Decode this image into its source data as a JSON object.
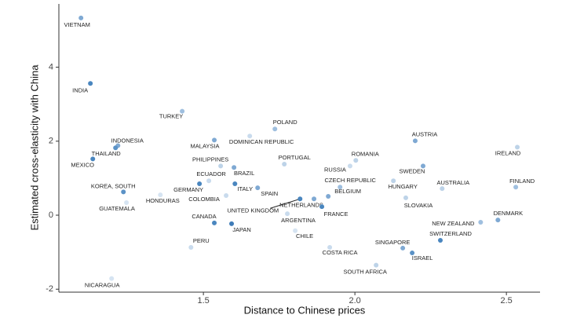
{
  "chart_data": {
    "type": "scatter",
    "xlabel": "Distance to Chinese prices",
    "ylabel": "Estimated cross-elasticity with China",
    "xlim": [
      1.023,
      2.611
    ],
    "ylim": [
      -2.08,
      5.71
    ],
    "xticks": [
      1.5,
      {
        "value": 2.0,
        "label": "2.0"
      },
      2.5
    ],
    "yticks": [
      -2,
      0,
      2,
      4
    ],
    "points": [
      {
        "label": "VIETNAM",
        "x": 1.096,
        "y": 5.33,
        "color": "#7fa9d3"
      },
      {
        "label": "INDIA",
        "x": 1.127,
        "y": 3.56,
        "color": "#4a86bf"
      },
      {
        "label": "TURKEY",
        "x": 1.43,
        "y": 2.81,
        "color": "#9fbfdf"
      },
      {
        "label": "INDONESIA",
        "x": 1.218,
        "y": 1.88,
        "color": "#7fa9d3"
      },
      {
        "label": "THAILAND",
        "x": 1.21,
        "y": 1.82,
        "color": "#5b92c6"
      },
      {
        "label": "MEXICO",
        "x": 1.135,
        "y": 1.52,
        "color": "#4a86bf"
      },
      {
        "label": "MALAYSIA",
        "x": 1.536,
        "y": 2.03,
        "color": "#7fa9d3"
      },
      {
        "label": "DOMINICAN REPUBLIC",
        "x": 1.653,
        "y": 2.14,
        "color": "#c9dbed"
      },
      {
        "label": "POLAND",
        "x": 1.736,
        "y": 2.33,
        "color": "#9fbfdf"
      },
      {
        "label": "PHILIPPINES",
        "x": 1.557,
        "y": 1.33,
        "color": "#bdd3e8"
      },
      {
        "label": "BRAZIL",
        "x": 1.601,
        "y": 1.29,
        "color": "#7fa9d3"
      },
      {
        "label": "ECUADOR",
        "x": 1.518,
        "y": 0.93,
        "color": "#c9dbed"
      },
      {
        "label": "GERMANY",
        "x": 1.487,
        "y": 0.85,
        "color": "#4a86bf"
      },
      {
        "label": "ITALY",
        "x": 1.604,
        "y": 0.85,
        "color": "#4a86bf"
      },
      {
        "label": "COLOMBIA",
        "x": 1.575,
        "y": 0.53,
        "color": "#c9dbed"
      },
      {
        "label": "PORTUGAL",
        "x": 1.767,
        "y": 1.38,
        "color": "#bdd3e8"
      },
      {
        "label": "SPAIN",
        "x": 1.679,
        "y": 0.74,
        "color": "#7fa9d3"
      },
      {
        "label": "KOREA, SOUTH",
        "x": 1.236,
        "y": 0.63,
        "color": "#5b92c6"
      },
      {
        "label": "GUATEMALA",
        "x": 1.246,
        "y": 0.34,
        "color": "#d6e4f2"
      },
      {
        "label": "HONDURAS",
        "x": 1.358,
        "y": 0.55,
        "color": "#d6e4f2"
      },
      {
        "label": "CANADA",
        "x": 1.536,
        "y": -0.21,
        "color": "#4a86bf"
      },
      {
        "label": "JAPAN",
        "x": 1.593,
        "y": -0.23,
        "color": "#3f7cb8"
      },
      {
        "label": "PERU",
        "x": 1.459,
        "y": -0.87,
        "color": "#c9dbed"
      },
      {
        "label": "NICARAGUA",
        "x": 1.197,
        "y": -1.71,
        "color": "#d6e4f2"
      },
      {
        "label": "UNITED KINGDOM",
        "x": 1.819,
        "y": 0.44,
        "color": "#4a86bf"
      },
      {
        "label": "NETHERLANDS",
        "x": 1.865,
        "y": 0.44,
        "color": "#7fa9d3"
      },
      {
        "label": "FRANCE",
        "x": 1.891,
        "y": 0.23,
        "color": "#4a86bf"
      },
      {
        "label": "ARGENTINA",
        "x": 1.777,
        "y": 0.04,
        "color": "#c9dbed"
      },
      {
        "label": "CHILE",
        "x": 1.803,
        "y": -0.42,
        "color": "#d6e4f2"
      },
      {
        "label": "BELGIUM",
        "x": 1.912,
        "y": 0.51,
        "color": "#7fa9d3"
      },
      {
        "label": "CZECH REPUBLIC",
        "x": 1.951,
        "y": 0.76,
        "color": "#9fbfdf"
      },
      {
        "label": "RUSSIA",
        "x": 1.984,
        "y": 1.33,
        "color": "#c9dbed"
      },
      {
        "label": "ROMANIA",
        "x": 2.003,
        "y": 1.48,
        "color": "#bdd3e8"
      },
      {
        "label": "COSTA RICA",
        "x": 1.917,
        "y": -0.87,
        "color": "#c9dbed"
      },
      {
        "label": "SOUTH AFRICA",
        "x": 2.07,
        "y": -1.35,
        "color": "#bdd3e8"
      },
      {
        "label": "AUSTRIA",
        "x": 2.199,
        "y": 2.01,
        "color": "#7fa9d3"
      },
      {
        "label": "SWEDEN",
        "x": 2.225,
        "y": 1.33,
        "color": "#7fa9d3"
      },
      {
        "label": "HUNGARY",
        "x": 2.127,
        "y": 0.93,
        "color": "#bdd3e8"
      },
      {
        "label": "SLOVAKIA",
        "x": 2.168,
        "y": 0.47,
        "color": "#bdd3e8"
      },
      {
        "label": "AUSTRALIA",
        "x": 2.288,
        "y": 0.72,
        "color": "#bdd3e8"
      },
      {
        "label": "IRELAND",
        "x": 2.536,
        "y": 1.84,
        "color": "#bdd3e8"
      },
      {
        "label": "FINLAND",
        "x": 2.531,
        "y": 0.76,
        "color": "#9fbfdf"
      },
      {
        "label": "DENMARK",
        "x": 2.472,
        "y": -0.13,
        "color": "#7fa9d3"
      },
      {
        "label": "NEW ZEALAND",
        "x": 2.415,
        "y": -0.19,
        "color": "#9fbfdf"
      },
      {
        "label": "SWITZERLAND",
        "x": 2.282,
        "y": -0.68,
        "color": "#4a86bf"
      },
      {
        "label": "SINGAPORE",
        "x": 2.158,
        "y": -0.89,
        "color": "#7fa9d3"
      },
      {
        "label": "ISRAEL",
        "x": 2.189,
        "y": -1.02,
        "color": "#5b92c6"
      }
    ]
  }
}
